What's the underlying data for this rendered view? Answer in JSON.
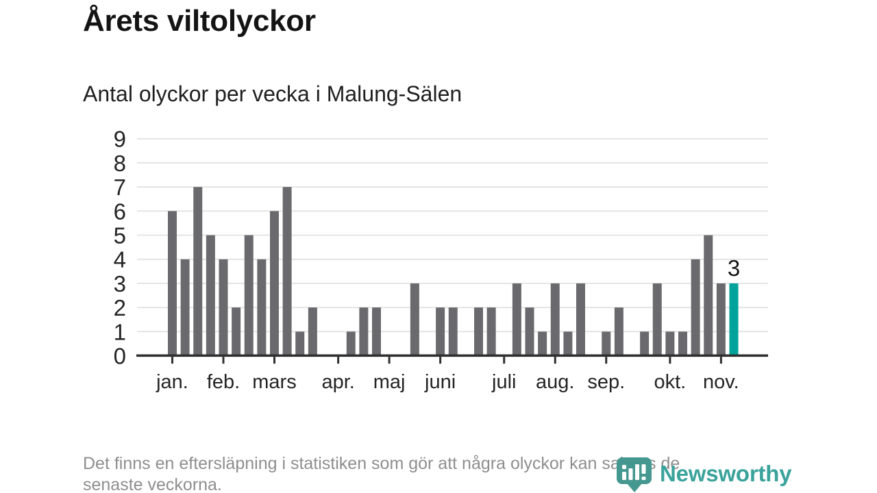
{
  "header": {
    "title": "Årets viltolyckor",
    "subtitle": "Antal olyckor per vecka i Malung-Sälen"
  },
  "footer": {
    "note_line1": "Det finns en eftersläpning i statistiken som gör att några olyckor kan saknas de",
    "note_line2": "senaste veckorna.",
    "brand": "Newsworthy"
  },
  "colors": {
    "bar": "#6a6a6e",
    "highlight": "#00a29a",
    "axis": "#2f2f2f",
    "grid": "#e4e4e4",
    "tick_text": "#242424",
    "annotation_text": "#141414",
    "footnote_text": "#8e8e8e",
    "brand_teal": "#3aa39b",
    "brand_badge": "#45988f"
  },
  "chart_data": {
    "type": "bar",
    "title": "Årets viltolyckor",
    "subtitle": "Antal olyckor per vecka i Malung-Sälen",
    "x_unit": "vecka",
    "first_week": 1,
    "values": [
      6,
      4,
      7,
      5,
      4,
      2,
      5,
      4,
      6,
      7,
      1,
      2,
      0,
      0,
      1,
      2,
      2,
      0,
      0,
      3,
      0,
      2,
      2,
      0,
      2,
      2,
      0,
      3,
      2,
      1,
      3,
      1,
      3,
      0,
      1,
      2,
      0,
      1,
      3,
      1,
      1,
      4,
      5,
      3,
      3
    ],
    "highlight_index": 44,
    "highlight_week": 45,
    "highlight_value_label": "3",
    "y_ticks": [
      0,
      1,
      2,
      3,
      4,
      5,
      6,
      7,
      8,
      9
    ],
    "ylim": [
      0,
      9
    ],
    "grid": true,
    "legend": false,
    "month_ticks": [
      {
        "label": "jan.",
        "week": 1
      },
      {
        "label": "feb.",
        "week": 5
      },
      {
        "label": "mars",
        "week": 9
      },
      {
        "label": "apr.",
        "week": 14
      },
      {
        "label": "maj",
        "week": 18
      },
      {
        "label": "juni",
        "week": 22
      },
      {
        "label": "juli",
        "week": 27
      },
      {
        "label": "aug.",
        "week": 31
      },
      {
        "label": "sep.",
        "week": 35
      },
      {
        "label": "okt.",
        "week": 40
      },
      {
        "label": "nov.",
        "week": 44
      }
    ]
  }
}
